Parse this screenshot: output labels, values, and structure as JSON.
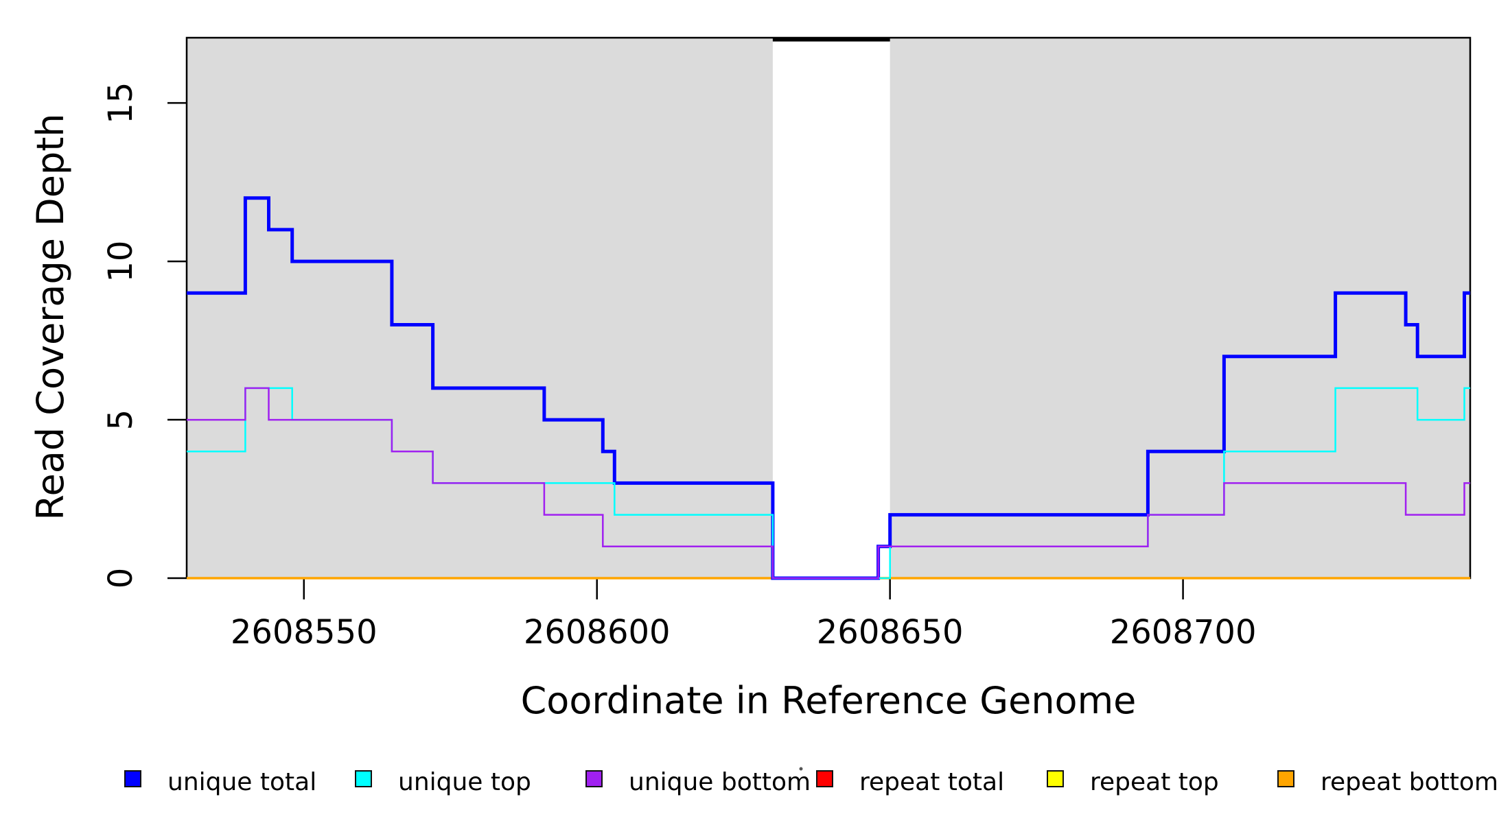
{
  "figure": {
    "background": "#FFFFFF",
    "plot_box_color": "#000000",
    "shading_color": "#DBDBDB",
    "y_axis": {
      "label": "Read Coverage Depth",
      "tick_labels": [
        "0",
        "5",
        "10",
        "15"
      ]
    },
    "x_axis": {
      "label": "Coordinate in Reference Genome",
      "tick_labels": [
        "2608550",
        "2608600",
        "2608650",
        "2608700"
      ]
    },
    "legend": {
      "items": [
        {
          "label": "unique total",
          "color": "#0000FF"
        },
        {
          "label": "unique top",
          "color": "#00FFFF"
        },
        {
          "label": "unique bottom",
          "color": "#A020F0"
        },
        {
          "label": "repeat total",
          "color": "#FF0000"
        },
        {
          "label": "repeat top",
          "color": "#FFFF00"
        },
        {
          "label": "repeat bottom",
          "color": "#FFA500"
        }
      ]
    }
  },
  "chart_data": {
    "type": "line",
    "subtype": "step",
    "title": "",
    "xlabel": "Coordinate in Reference Genome",
    "ylabel": "Read Coverage Depth",
    "xlim": [
      2608530,
      2608749
    ],
    "ylim": [
      0,
      17.06
    ],
    "x_ticks": [
      2608550,
      2608600,
      2608650,
      2608700
    ],
    "y_ticks": [
      0,
      5,
      10,
      15
    ],
    "grid": false,
    "legend_position": "bottom",
    "background_shading": {
      "color": "#DBDBDB",
      "regions": [
        [
          2608530,
          2608630
        ],
        [
          2608650,
          2608749
        ]
      ],
      "white_gap": [
        2608630,
        2608650
      ]
    },
    "series": [
      {
        "name": "unique total",
        "color": "#0000FF",
        "line_width": 5,
        "draw_order": 4,
        "segments": [
          [
            2608530,
            2608540,
            9
          ],
          [
            2608540,
            2608544,
            12
          ],
          [
            2608544,
            2608548,
            11
          ],
          [
            2608548,
            2608565,
            10
          ],
          [
            2608565,
            2608572,
            8
          ],
          [
            2608572,
            2608591,
            6
          ],
          [
            2608591,
            2608601,
            5
          ],
          [
            2608601,
            2608603,
            4
          ],
          [
            2608603,
            2608630,
            3
          ],
          [
            2608630,
            2608648,
            0
          ],
          [
            2608648,
            2608650,
            1
          ],
          [
            2608650,
            2608694,
            2
          ],
          [
            2608694,
            2608707,
            4
          ],
          [
            2608707,
            2608726,
            7
          ],
          [
            2608726,
            2608738,
            9
          ],
          [
            2608738,
            2608740,
            8
          ],
          [
            2608740,
            2608748,
            7
          ],
          [
            2608748,
            2608749,
            9
          ]
        ]
      },
      {
        "name": "unique top",
        "color": "#00FFFF",
        "line_width": 2.5,
        "draw_order": 5,
        "segments": [
          [
            2608530,
            2608540,
            4
          ],
          [
            2608540,
            2608548,
            6
          ],
          [
            2608548,
            2608565,
            5
          ],
          [
            2608565,
            2608572,
            4
          ],
          [
            2608572,
            2608603,
            3
          ],
          [
            2608603,
            2608630,
            2
          ],
          [
            2608630,
            2608650,
            0
          ],
          [
            2608650,
            2608694,
            1
          ],
          [
            2608694,
            2608707,
            2
          ],
          [
            2608707,
            2608726,
            4
          ],
          [
            2608726,
            2608740,
            6
          ],
          [
            2608740,
            2608748,
            5
          ],
          [
            2608748,
            2608749,
            6
          ]
        ]
      },
      {
        "name": "unique bottom",
        "color": "#A020F0",
        "line_width": 2.5,
        "draw_order": 6,
        "segments": [
          [
            2608530,
            2608540,
            5
          ],
          [
            2608540,
            2608544,
            6
          ],
          [
            2608544,
            2608565,
            5
          ],
          [
            2608565,
            2608572,
            4
          ],
          [
            2608572,
            2608591,
            3
          ],
          [
            2608591,
            2608601,
            2
          ],
          [
            2608601,
            2608630,
            1
          ],
          [
            2608630,
            2608648,
            0
          ],
          [
            2608648,
            2608694,
            1
          ],
          [
            2608694,
            2608707,
            2
          ],
          [
            2608707,
            2608738,
            3
          ],
          [
            2608738,
            2608748,
            2
          ],
          [
            2608748,
            2608749,
            3
          ]
        ]
      },
      {
        "name": "repeat total",
        "color": "#FF0000",
        "line_width": 2,
        "draw_order": 1,
        "segments": [
          [
            2608530,
            2608749,
            0
          ]
        ]
      },
      {
        "name": "repeat top",
        "color": "#FFFF00",
        "line_width": 2,
        "draw_order": 2,
        "segments": [
          [
            2608530,
            2608749,
            0
          ]
        ]
      },
      {
        "name": "repeat bottom",
        "color": "#FFA500",
        "line_width": 3.5,
        "draw_order": 3,
        "segments": [
          [
            2608530,
            2608749,
            0
          ]
        ]
      }
    ]
  }
}
